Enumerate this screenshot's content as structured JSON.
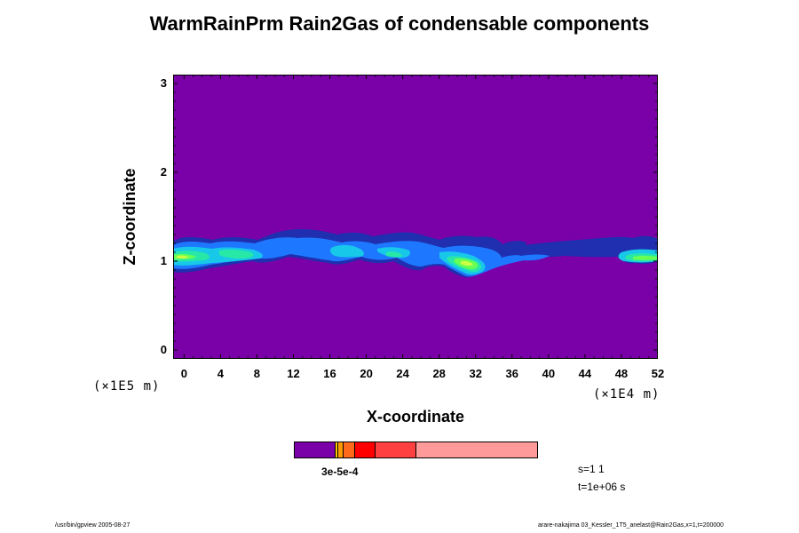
{
  "chart_data": {
    "type": "heatmap",
    "title": "WarmRainPrm Rain2Gas of condensable components",
    "xlabel": "X-coordinate",
    "ylabel": "Z-coordinate",
    "x_scale_label": "(×1E4 m)",
    "y_scale_label": "(×1E5 m)",
    "xlim": [
      -1.2,
      52
    ],
    "ylim": [
      -0.1,
      3.1
    ],
    "x_ticks": [
      "0",
      "4",
      "8",
      "12",
      "16",
      "20",
      "24",
      "28",
      "32",
      "36",
      "40",
      "44",
      "48",
      "52"
    ],
    "y_ticks": [
      "0",
      "1",
      "2",
      "3"
    ],
    "background_value": "below lowest level",
    "colorbar": {
      "label": "3e-5e-4",
      "colors": [
        "#7a00a8",
        "#ffc800",
        "#ff9a00",
        "#ff6a1a",
        "#ff0000",
        "#ff4040",
        "#ff9a9a"
      ]
    },
    "features": [
      {
        "name": "cloud band",
        "z_range": [
          0.8,
          1.3
        ],
        "x_range": [
          -1.2,
          52
        ],
        "colors": [
          "#1f2fb0",
          "#1e78ff",
          "#18c8e8",
          "#28e8a8",
          "#66ff55",
          "#ccff44"
        ]
      }
    ]
  },
  "info": {
    "section": "s=1 1",
    "time": "t=1e+06 s"
  },
  "footer": {
    "left": "/usr/bin/gpview 2005-08-27",
    "right": "arare-nakajima  03_Kessler_1T5_anelast@Rain2Gas,x=1,t=200000"
  }
}
